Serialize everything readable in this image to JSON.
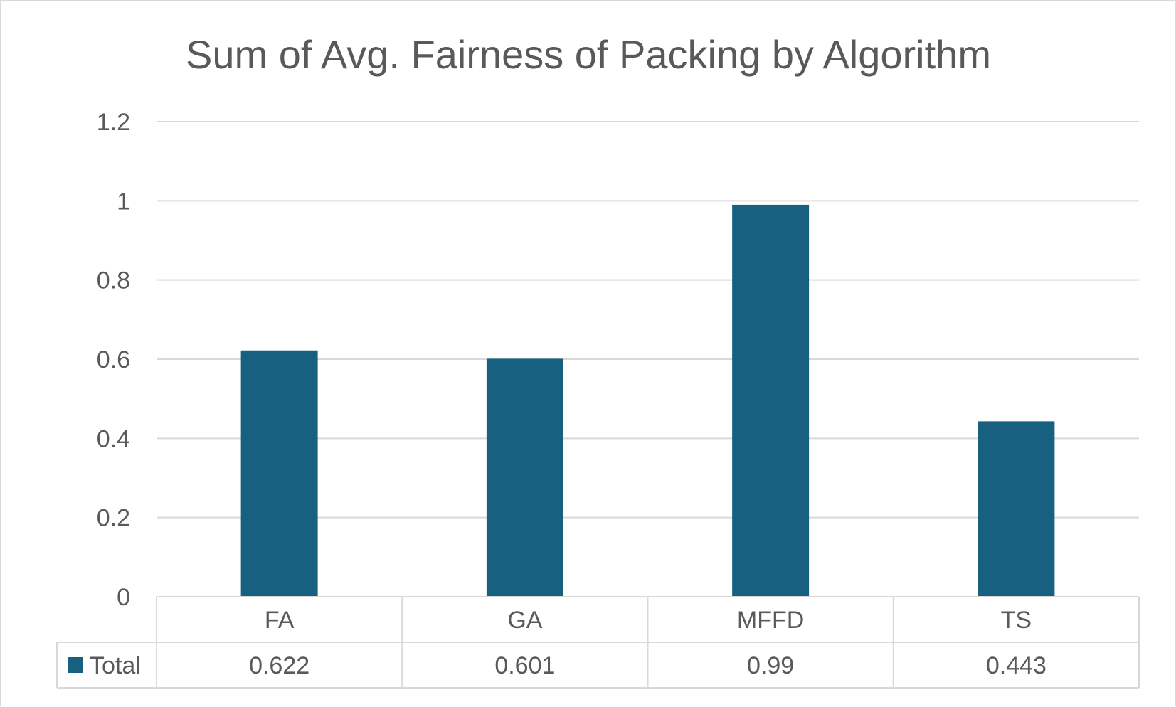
{
  "chart_data": {
    "type": "bar",
    "title": "Sum of  Avg. Fairness of Packing by Algorithm",
    "categories": [
      "FA",
      "GA",
      "MFFD",
      "TS"
    ],
    "series": [
      {
        "name": "Total",
        "values": [
          0.622,
          0.601,
          0.99,
          0.443
        ],
        "value_labels": [
          "0.622",
          "0.601",
          "0.99",
          "0.443"
        ],
        "color": "#17607f"
      }
    ],
    "y_ticks": [
      "0",
      "0.2",
      "0.4",
      "0.6",
      "0.8",
      "1",
      "1.2"
    ],
    "ylim": [
      0,
      1.2
    ],
    "grid": true,
    "legend": "data-table",
    "colors": {
      "text": "#595959",
      "gridline": "#d9d9d9",
      "bar": "#17607f"
    }
  }
}
